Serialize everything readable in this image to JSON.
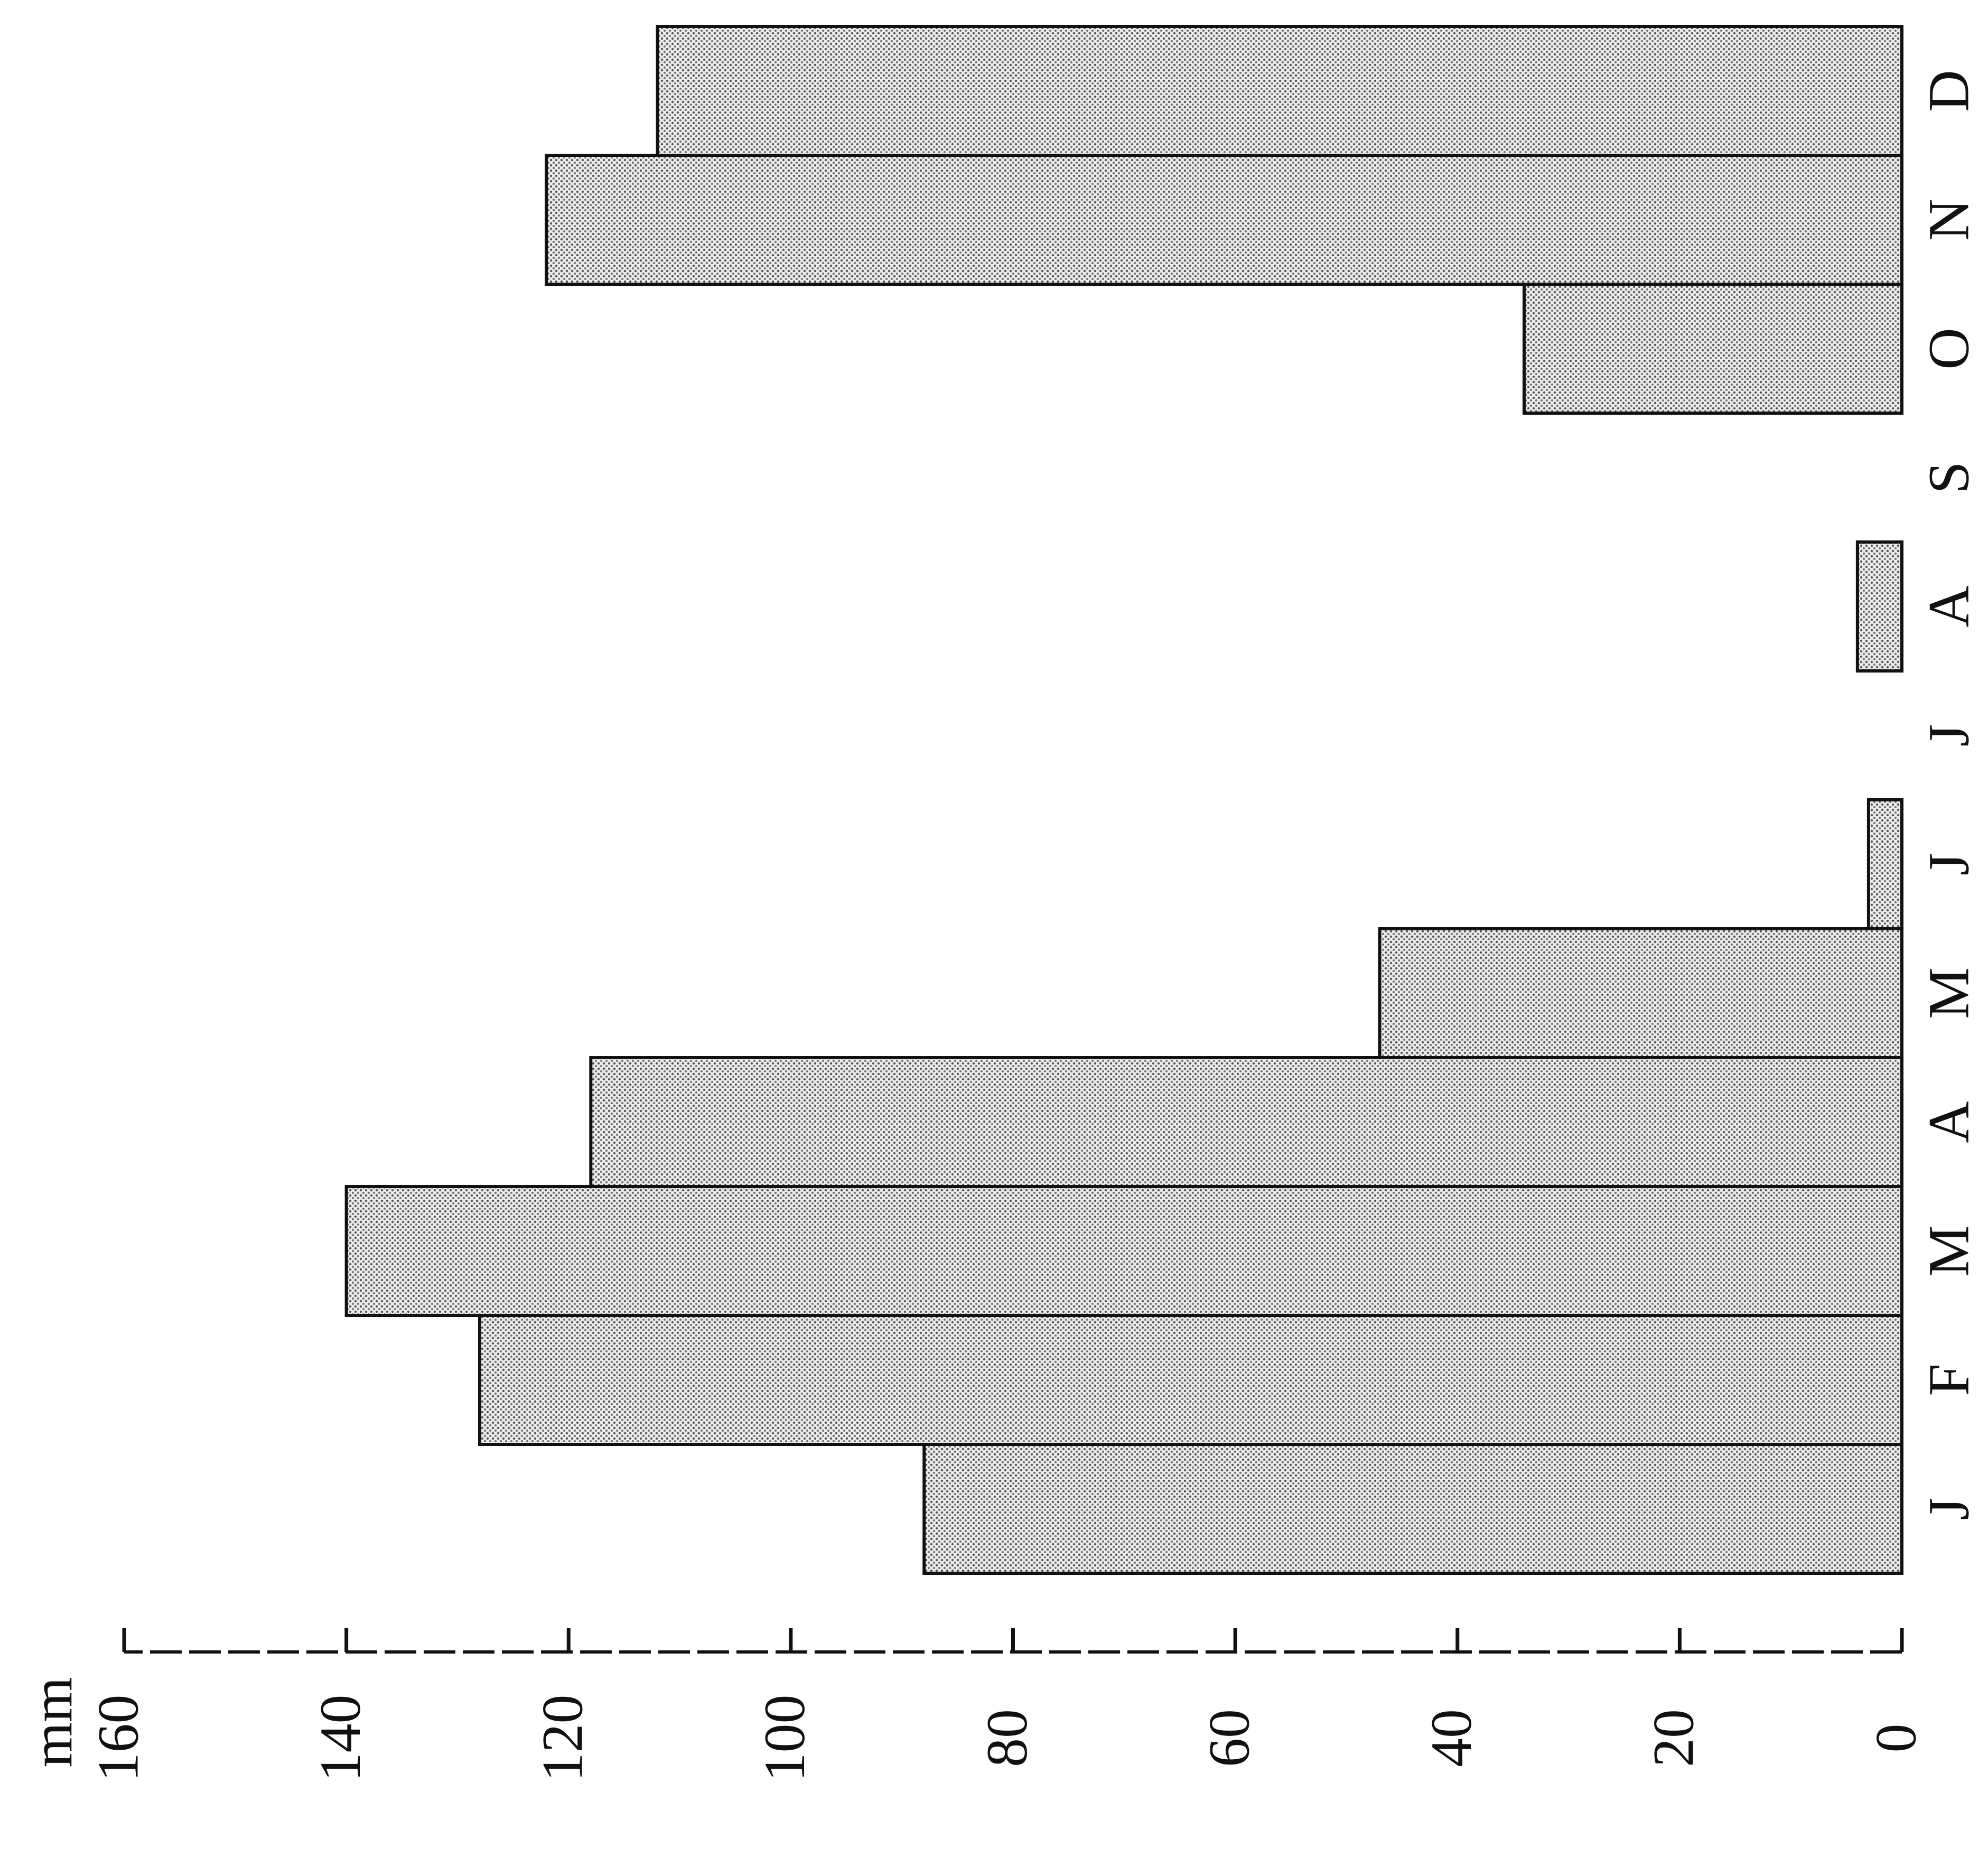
{
  "chart_data": {
    "type": "bar",
    "orientation": "horizontal",
    "y_label": "mm",
    "categories": [
      "J",
      "F",
      "M",
      "A",
      "M",
      "J",
      "J",
      "A",
      "S",
      "O",
      "N",
      "D"
    ],
    "values": [
      88,
      128,
      140,
      118,
      47,
      3,
      0,
      4,
      0,
      34,
      122,
      112
    ],
    "color": "#c8c8c8",
    "ylim": [
      0,
      160
    ],
    "yticks": [
      0,
      20,
      40,
      60,
      80,
      100,
      120,
      140,
      160
    ],
    "grid": false
  }
}
